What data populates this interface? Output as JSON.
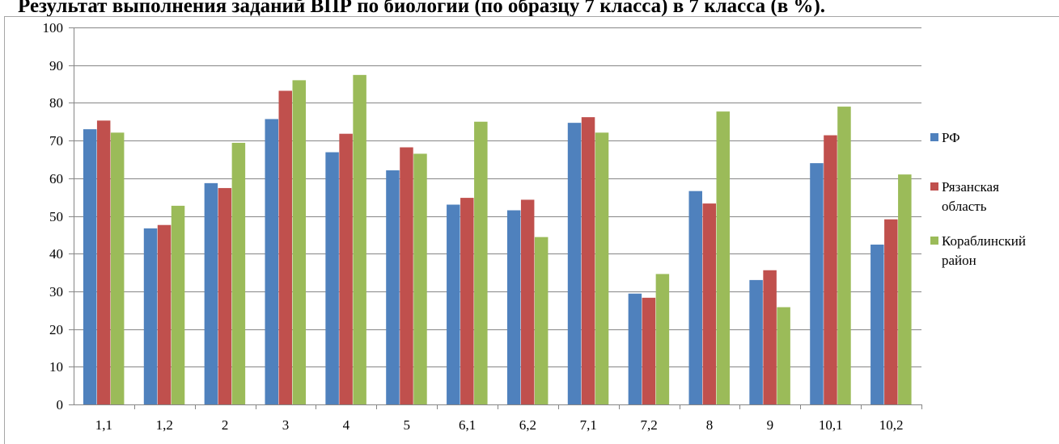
{
  "chart_data": {
    "type": "bar",
    "title": "Результат выполнения заданий ВПР по биологии (по образцу 7 класса) в 7 класса (в %).",
    "xlabel": "",
    "ylabel": "",
    "ylim": [
      0,
      100
    ],
    "yticks": [
      0,
      10,
      20,
      30,
      40,
      50,
      60,
      70,
      80,
      90,
      100
    ],
    "grid": true,
    "legend_position": "right",
    "categories": [
      "1,1",
      "1,2",
      "2",
      "3",
      "4",
      "5",
      "6,1",
      "6,2",
      "7,1",
      "7,2",
      "8",
      "9",
      "10,1",
      "10,2"
    ],
    "series": [
      {
        "name": "РФ",
        "legend_lines": [
          "РФ"
        ],
        "color": "#4f81bd",
        "values": [
          73,
          46.7,
          58.7,
          75.7,
          66.9,
          62.1,
          53,
          51.5,
          74.7,
          29.4,
          56.6,
          33,
          64,
          42.4
        ]
      },
      {
        "name": "Рязанская область",
        "legend_lines": [
          "Рязанская",
          "область"
        ],
        "color": "#c0504d",
        "values": [
          75.3,
          47.6,
          57.4,
          83.2,
          71.8,
          68.2,
          54.8,
          54.3,
          76.2,
          28.3,
          53.3,
          35.6,
          71.4,
          49.1
        ]
      },
      {
        "name": "Кораблинский район",
        "legend_lines": [
          "Кораблинский",
          "район"
        ],
        "color": "#9bbb59",
        "values": [
          72.1,
          52.7,
          69.4,
          86,
          87.4,
          66.5,
          75,
          44.4,
          72.1,
          34.6,
          77.7,
          25.8,
          79,
          61
        ]
      }
    ]
  }
}
